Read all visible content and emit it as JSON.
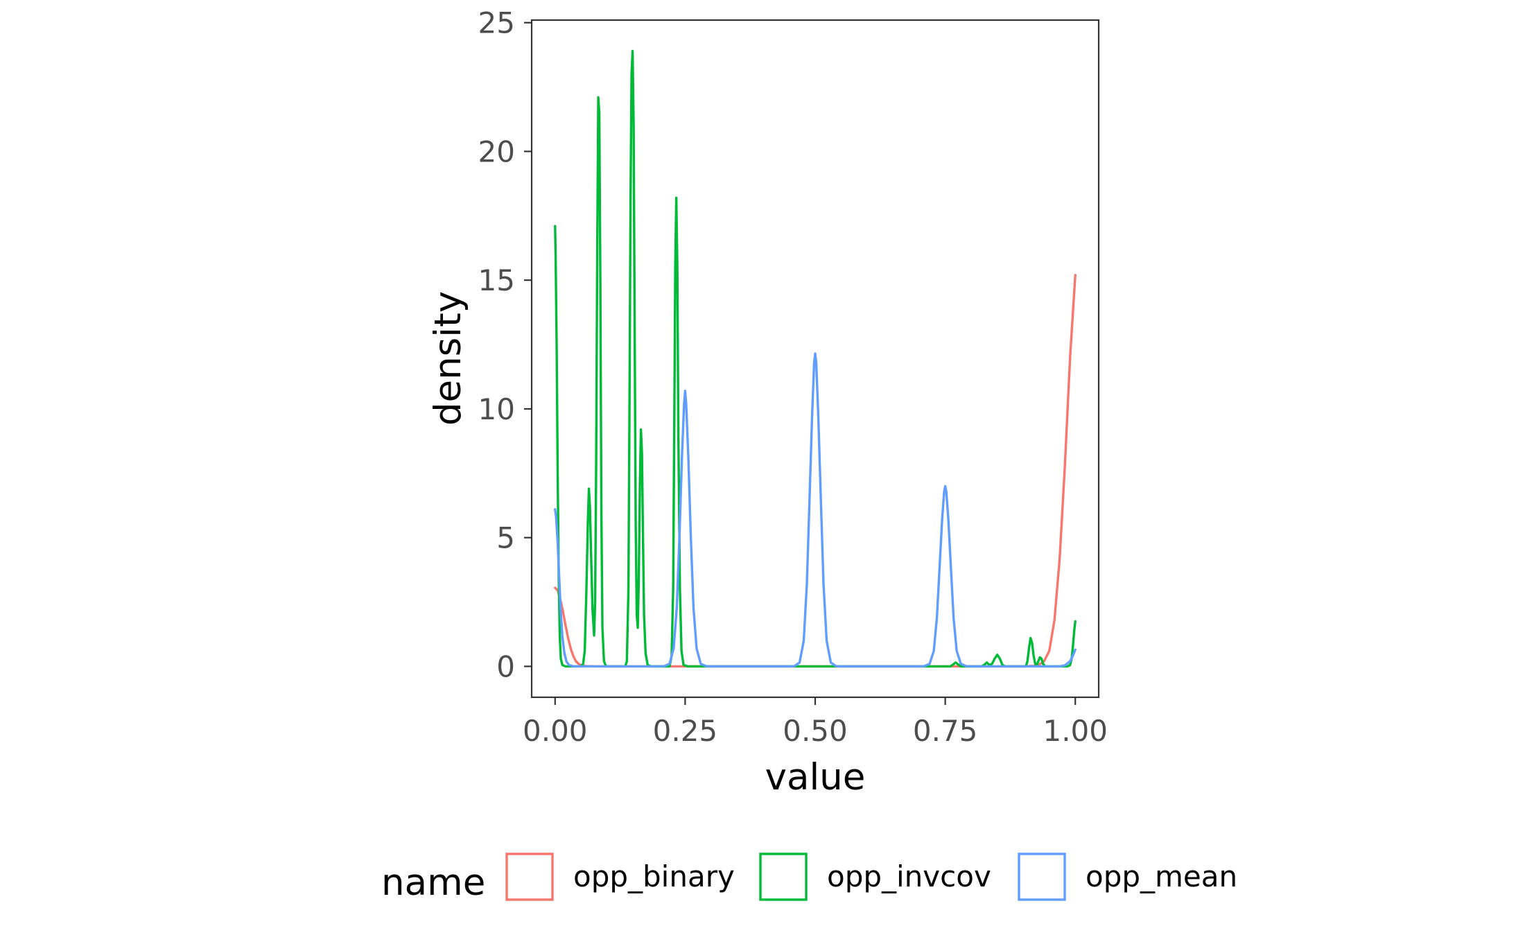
{
  "chart_data": {
    "type": "line",
    "title": "",
    "xlabel": "value",
    "ylabel": "density",
    "xlim": [
      -0.045,
      1.045
    ],
    "ylim": [
      -1.2,
      25.1
    ],
    "x_ticks": [
      0,
      0.25,
      0.5,
      0.75,
      1
    ],
    "x_tick_labels": [
      "0.00",
      "0.25",
      "0.50",
      "0.75",
      "1.00"
    ],
    "y_ticks": [
      0,
      5,
      10,
      15,
      20,
      25
    ],
    "y_tick_labels": [
      "0",
      "5",
      "10",
      "15",
      "20",
      "25"
    ],
    "grid": false,
    "legend": {
      "title": "name",
      "position": "bottom"
    },
    "series": [
      {
        "name": "opp_binary",
        "color": "#F8766D",
        "points": [
          [
            0,
            3.05
          ],
          [
            0.005,
            2.95
          ],
          [
            0.01,
            2.6
          ],
          [
            0.015,
            2.15
          ],
          [
            0.02,
            1.6
          ],
          [
            0.025,
            1.1
          ],
          [
            0.03,
            0.7
          ],
          [
            0.035,
            0.4
          ],
          [
            0.04,
            0.2
          ],
          [
            0.045,
            0.1
          ],
          [
            0.05,
            0.04
          ],
          [
            0.06,
            0.01
          ],
          [
            0.08,
            0
          ],
          [
            0.3,
            0
          ],
          [
            0.5,
            0
          ],
          [
            0.7,
            0
          ],
          [
            0.9,
            0
          ],
          [
            0.92,
            0.02
          ],
          [
            0.93,
            0.06
          ],
          [
            0.94,
            0.2
          ],
          [
            0.95,
            0.6
          ],
          [
            0.96,
            1.8
          ],
          [
            0.97,
            4.2
          ],
          [
            0.98,
            7.8
          ],
          [
            0.99,
            12.0
          ],
          [
            1.0,
            15.2
          ]
        ]
      },
      {
        "name": "opp_invcov",
        "color": "#00BA38",
        "points": [
          [
            0,
            17.1
          ],
          [
            0.001,
            16.0
          ],
          [
            0.003,
            12.5
          ],
          [
            0.005,
            7.5
          ],
          [
            0.007,
            3.5
          ],
          [
            0.009,
            1.2
          ],
          [
            0.011,
            0.3
          ],
          [
            0.014,
            0.05
          ],
          [
            0.02,
            0
          ],
          [
            0.05,
            0
          ],
          [
            0.054,
            0.1
          ],
          [
            0.057,
            0.6
          ],
          [
            0.06,
            2.8
          ],
          [
            0.063,
            5.6
          ],
          [
            0.065,
            6.9
          ],
          [
            0.067,
            6.2
          ],
          [
            0.069,
            4.5
          ],
          [
            0.072,
            2.2
          ],
          [
            0.075,
            1.2
          ],
          [
            0.077,
            2.5
          ],
          [
            0.079,
            8.0
          ],
          [
            0.081,
            16.0
          ],
          [
            0.083,
            22.1
          ],
          [
            0.085,
            21.5
          ],
          [
            0.087,
            15.0
          ],
          [
            0.089,
            6.0
          ],
          [
            0.091,
            1.5
          ],
          [
            0.094,
            0.2
          ],
          [
            0.098,
            0
          ],
          [
            0.135,
            0
          ],
          [
            0.138,
            0.2
          ],
          [
            0.141,
            3.0
          ],
          [
            0.143,
            10.0
          ],
          [
            0.145,
            18.0
          ],
          [
            0.147,
            23.0
          ],
          [
            0.149,
            23.9
          ],
          [
            0.151,
            21.0
          ],
          [
            0.153,
            13.0
          ],
          [
            0.155,
            5.5
          ],
          [
            0.157,
            2.0
          ],
          [
            0.159,
            1.5
          ],
          [
            0.161,
            3.5
          ],
          [
            0.163,
            7.0
          ],
          [
            0.165,
            9.2
          ],
          [
            0.167,
            8.3
          ],
          [
            0.169,
            5.0
          ],
          [
            0.171,
            2.0
          ],
          [
            0.174,
            0.5
          ],
          [
            0.178,
            0.05
          ],
          [
            0.185,
            0
          ],
          [
            0.22,
            0
          ],
          [
            0.224,
            0.4
          ],
          [
            0.227,
            3.0
          ],
          [
            0.229,
            9.0
          ],
          [
            0.231,
            15.5
          ],
          [
            0.233,
            18.2
          ],
          [
            0.235,
            15.5
          ],
          [
            0.237,
            9.0
          ],
          [
            0.24,
            3.0
          ],
          [
            0.243,
            0.6
          ],
          [
            0.247,
            0.05
          ],
          [
            0.255,
            0
          ],
          [
            0.5,
            0
          ],
          [
            0.76,
            0
          ],
          [
            0.765,
            0.07
          ],
          [
            0.77,
            0.15
          ],
          [
            0.775,
            0.07
          ],
          [
            0.78,
            0
          ],
          [
            0.82,
            0
          ],
          [
            0.825,
            0.06
          ],
          [
            0.83,
            0.15
          ],
          [
            0.835,
            0.05
          ],
          [
            0.84,
            0.1
          ],
          [
            0.845,
            0.3
          ],
          [
            0.85,
            0.45
          ],
          [
            0.855,
            0.3
          ],
          [
            0.86,
            0.05
          ],
          [
            0.865,
            0
          ],
          [
            0.905,
            0
          ],
          [
            0.908,
            0.2
          ],
          [
            0.911,
            0.7
          ],
          [
            0.914,
            1.1
          ],
          [
            0.917,
            0.9
          ],
          [
            0.92,
            0.4
          ],
          [
            0.923,
            0.1
          ],
          [
            0.926,
            0.05
          ],
          [
            0.929,
            0.2
          ],
          [
            0.932,
            0.35
          ],
          [
            0.935,
            0.3
          ],
          [
            0.938,
            0.1
          ],
          [
            0.942,
            0
          ],
          [
            0.985,
            0
          ],
          [
            0.99,
            0.05
          ],
          [
            0.993,
            0.3
          ],
          [
            0.996,
            0.9
          ],
          [
            0.998,
            1.4
          ],
          [
            1.0,
            1.75
          ]
        ]
      },
      {
        "name": "opp_mean",
        "color": "#619CFF",
        "points": [
          [
            0,
            6.1
          ],
          [
            0.002,
            5.8
          ],
          [
            0.005,
            4.8
          ],
          [
            0.008,
            3.4
          ],
          [
            0.011,
            2.1
          ],
          [
            0.014,
            1.15
          ],
          [
            0.018,
            0.5
          ],
          [
            0.022,
            0.18
          ],
          [
            0.027,
            0.05
          ],
          [
            0.035,
            0
          ],
          [
            0.2,
            0
          ],
          [
            0.21,
            0.01
          ],
          [
            0.22,
            0.1
          ],
          [
            0.228,
            0.7
          ],
          [
            0.234,
            2.3
          ],
          [
            0.239,
            5.0
          ],
          [
            0.244,
            8.2
          ],
          [
            0.248,
            10.2
          ],
          [
            0.25,
            10.7
          ],
          [
            0.252,
            10.2
          ],
          [
            0.256,
            8.2
          ],
          [
            0.261,
            5.0
          ],
          [
            0.266,
            2.3
          ],
          [
            0.272,
            0.7
          ],
          [
            0.28,
            0.1
          ],
          [
            0.29,
            0.01
          ],
          [
            0.3,
            0
          ],
          [
            0.45,
            0
          ],
          [
            0.46,
            0.01
          ],
          [
            0.47,
            0.15
          ],
          [
            0.478,
            1.0
          ],
          [
            0.484,
            3.2
          ],
          [
            0.489,
            6.4
          ],
          [
            0.494,
            9.7
          ],
          [
            0.498,
            11.8
          ],
          [
            0.5,
            12.15
          ],
          [
            0.502,
            11.8
          ],
          [
            0.506,
            9.7
          ],
          [
            0.511,
            6.4
          ],
          [
            0.516,
            3.2
          ],
          [
            0.522,
            1.0
          ],
          [
            0.53,
            0.15
          ],
          [
            0.54,
            0.01
          ],
          [
            0.55,
            0
          ],
          [
            0.7,
            0
          ],
          [
            0.71,
            0.01
          ],
          [
            0.72,
            0.1
          ],
          [
            0.728,
            0.6
          ],
          [
            0.734,
            1.9
          ],
          [
            0.739,
            3.8
          ],
          [
            0.744,
            5.7
          ],
          [
            0.748,
            6.8
          ],
          [
            0.75,
            7.0
          ],
          [
            0.752,
            6.8
          ],
          [
            0.756,
            5.7
          ],
          [
            0.761,
            3.8
          ],
          [
            0.766,
            1.9
          ],
          [
            0.772,
            0.6
          ],
          [
            0.78,
            0.1
          ],
          [
            0.79,
            0.01
          ],
          [
            0.8,
            0
          ],
          [
            0.97,
            0
          ],
          [
            0.98,
            0.04
          ],
          [
            0.99,
            0.2
          ],
          [
            0.995,
            0.4
          ],
          [
            1.0,
            0.65
          ]
        ]
      }
    ]
  }
}
